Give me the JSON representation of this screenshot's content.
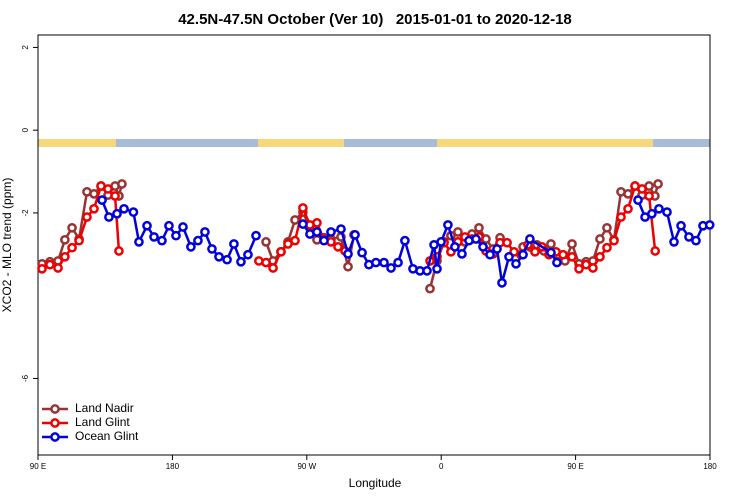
{
  "chart_data": {
    "type": "line",
    "title": "42.5N-47.5N October (Ver 10)   2015-01-01 to 2020-12-18",
    "xlabel": "Longitude",
    "ylabel": "XCO2 - MLO trend (ppm)",
    "xlim": [
      90,
      540
    ],
    "ylim": [
      -7.85,
      2.3
    ],
    "xticks": [
      {
        "value": 90,
        "label": "90 E"
      },
      180,
      {
        "value": 270,
        "label": "90 W"
      },
      {
        "value": 360,
        "label": "0"
      },
      {
        "value": 450,
        "label": "90 E"
      },
      {
        "value": 540,
        "label": "180"
      }
    ],
    "yticks": [
      2,
      0,
      -2,
      -6
    ],
    "legend": "bottomleft",
    "series": [
      {
        "name": "Land Nadir",
        "color": "#993333",
        "x": [
          92.7,
          98,
          103.4,
          108,
          112.8,
          117.5,
          122.8,
          127.5,
          132.2,
          136.9,
          141.6,
          144.2,
          146.2,
          null,
          242.7,
          247.4,
          252.7,
          257.4,
          262.1,
          267.4,
          272.1,
          276.8,
          281.5,
          286.2,
          292.9,
          297.6,
          301.6,
          null,
          352.5,
          357.2,
          361.9,
          366.5,
          371.2,
          375.9,
          380.6,
          385.3,
          390,
          394.7,
          399.4,
          null,
          414.8,
          419.4,
          424.1,
          428.8,
          433.5,
          438.2,
          442.9,
          447.6,
          452.3,
          457,
          461.6,
          466.3,
          471,
          475.7,
          480.4,
          485.1,
          489.8,
          494.5,
          499.2,
          503.1,
          505.2
        ],
        "values": [
          -3.23,
          -3.18,
          -3.16,
          -2.65,
          -2.36,
          -2.63,
          -1.49,
          -1.54,
          -1.35,
          -1.57,
          -1.35,
          -1.59,
          -1.3,
          null,
          -2.7,
          -3.16,
          -2.94,
          -2.7,
          -2.17,
          -1.98,
          -2.36,
          -2.65,
          -2.6,
          -2.63,
          -2.58,
          -3.3,
          -2.53,
          null,
          -3.83,
          -3.16,
          -2.7,
          -2.55,
          -2.46,
          -2.7,
          -2.51,
          -2.36,
          -2.63,
          -2.87,
          -2.6,
          null,
          -2.82,
          -2.82,
          -2.77,
          -2.92,
          -2.75,
          -3.01,
          -3.16,
          -2.75,
          -3.23,
          -3.18,
          -3.16,
          -2.63,
          -2.36,
          -2.65,
          -1.49,
          -1.54,
          -1.35,
          -1.57,
          -1.35,
          -1.59,
          -1.3
        ]
      },
      {
        "name": "Land Glint",
        "color": "#ee0000",
        "x": [
          92.7,
          98,
          103.4,
          108,
          112.8,
          117.5,
          122.8,
          127.5,
          132.2,
          136.9,
          141.6,
          144.2,
          null,
          237.9,
          242.7,
          247.4,
          252.7,
          257.4,
          262.1,
          267.4,
          272.1,
          276.8,
          281.5,
          286.2,
          290.9,
          295.6,
          null,
          352.5,
          357.2,
          361.9,
          366.5,
          371.2,
          375.9,
          380.6,
          385.3,
          390,
          394.7,
          399.4,
          404.1,
          408.8,
          413.4,
          418.1,
          422.8,
          427.5,
          432.2,
          436.9,
          441.6,
          447.6,
          452.3,
          457,
          461.6,
          466.3,
          471,
          475.7,
          480.4,
          485.1,
          489.8,
          494.5,
          499.2,
          503.3
        ],
        "values": [
          -3.35,
          -3.25,
          -3.33,
          -3.06,
          -2.84,
          -2.67,
          -2.1,
          -1.9,
          -1.35,
          -1.42,
          -1.59,
          -2.92,
          null,
          -3.16,
          -3.2,
          -3.33,
          -2.94,
          -2.75,
          -2.67,
          -1.88,
          -2.29,
          -2.24,
          -2.65,
          -2.7,
          -2.82,
          -2.92,
          null,
          -3.16,
          -3.06,
          -2.72,
          -2.94,
          -2.7,
          -2.58,
          -2.63,
          -2.58,
          -2.92,
          -2.99,
          -2.72,
          -2.72,
          -2.94,
          -3.01,
          -2.77,
          -2.94,
          -2.82,
          -3.01,
          -2.94,
          -3.01,
          -3.06,
          -3.35,
          -3.25,
          -3.33,
          -3.06,
          -2.84,
          -2.67,
          -2.1,
          -1.9,
          -1.35,
          -1.42,
          -1.59,
          -2.92
        ]
      },
      {
        "name": "Ocean Glint",
        "color": "#0000dd",
        "x": [
          132.9,
          137.5,
          142.9,
          147.6,
          153.9,
          157.6,
          163,
          167.7,
          173,
          177.7,
          182.4,
          187.1,
          192.4,
          197.1,
          201.8,
          206.5,
          211.2,
          216.6,
          221.2,
          225.9,
          230.6,
          236,
          null,
          267.4,
          272.1,
          276.8,
          281.5,
          286.2,
          292.9,
          297.6,
          302.3,
          307,
          311.6,
          316.3,
          321.7,
          326.4,
          331.1,
          335.7,
          341.1,
          345.8,
          350.5,
          355.2,
          357.2,
          359.9,
          364.5,
          369.2,
          373.9,
          378.6,
          383.3,
          388,
          392.7,
          397.4,
          400.7,
          405.4,
          410.1,
          414.8,
          419.4,
          433.5,
          437.5,
          null,
          491.8,
          496.5,
          501.1,
          505.8,
          511.2,
          515.9,
          520.6,
          525.9,
          530.6,
          535.3,
          539.8
        ],
        "values": [
          -1.69,
          -2.1,
          -2.02,
          -1.9,
          -1.98,
          -2.7,
          -2.31,
          -2.58,
          -2.67,
          -2.31,
          -2.55,
          -2.34,
          -2.82,
          -2.67,
          -2.46,
          -2.87,
          -3.06,
          -3.13,
          -2.75,
          -3.18,
          -3.01,
          -2.55,
          null,
          -2.27,
          -2.51,
          -2.46,
          -2.67,
          -2.46,
          -2.39,
          -2.99,
          -2.53,
          -2.96,
          -3.25,
          -3.2,
          -3.2,
          -3.33,
          -3.2,
          -2.67,
          -3.35,
          -3.4,
          -3.4,
          -2.77,
          -3.35,
          -2.7,
          -2.29,
          -2.82,
          -2.99,
          -2.67,
          -2.63,
          -2.82,
          -3.01,
          -2.87,
          -3.69,
          -3.06,
          -3.23,
          -3.01,
          -2.63,
          -2.96,
          -3.2,
          null,
          -1.69,
          -2.1,
          -2.02,
          -1.9,
          -1.98,
          -2.7,
          -2.31,
          -2.58,
          -2.67,
          -2.31,
          -2.29
        ]
      }
    ]
  }
}
